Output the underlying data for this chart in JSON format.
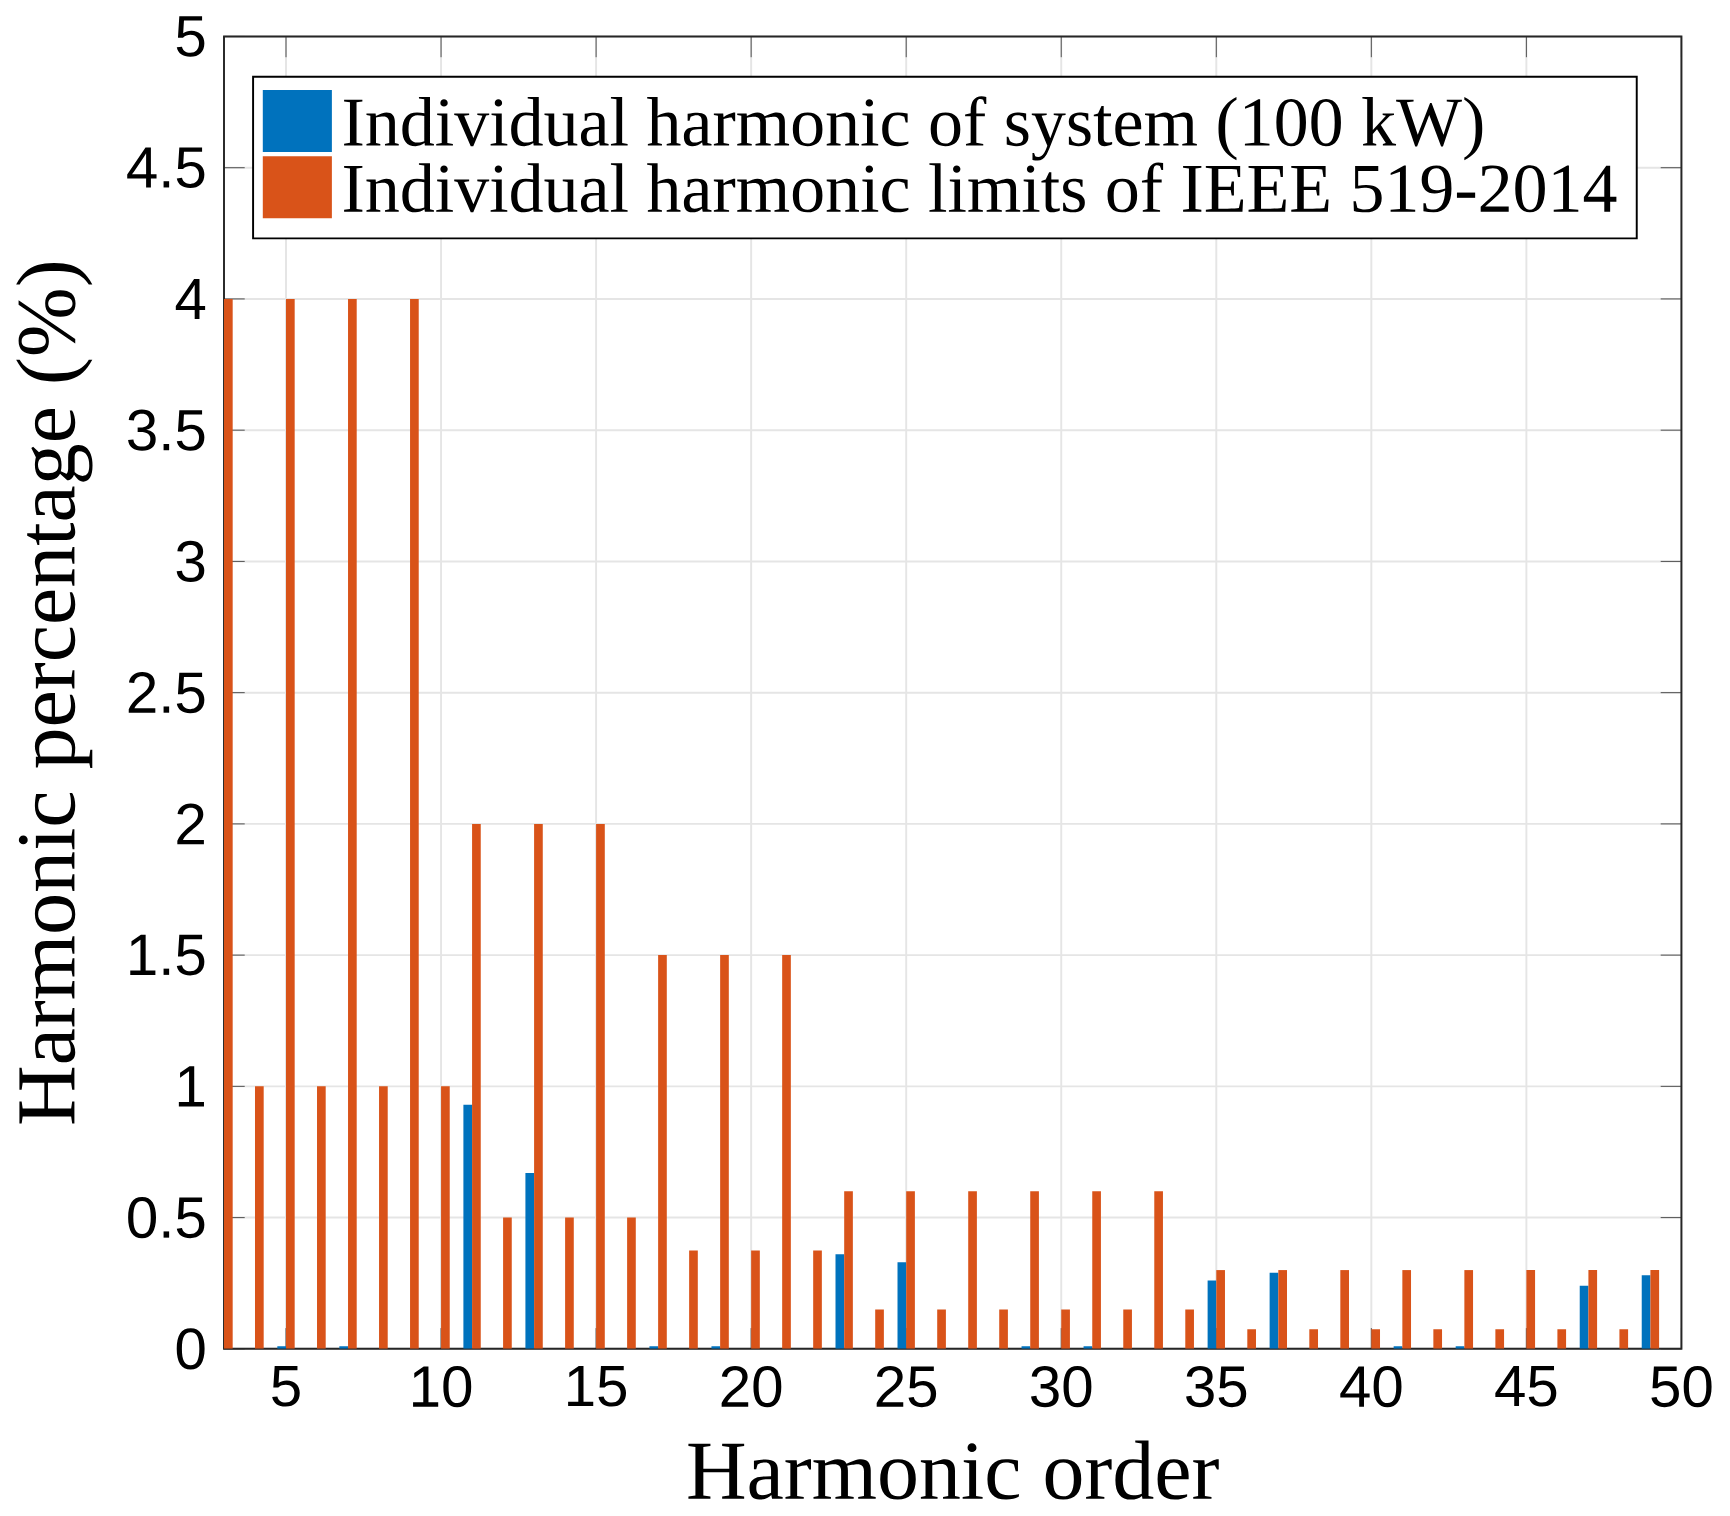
{
  "chart_data": {
    "type": "bar",
    "xlabel": "Harmonic order",
    "ylabel": "Harmonic percentage (%)",
    "x": [
      3,
      4,
      5,
      6,
      7,
      8,
      9,
      10,
      11,
      12,
      13,
      14,
      15,
      16,
      17,
      18,
      19,
      20,
      21,
      22,
      23,
      24,
      25,
      26,
      27,
      28,
      29,
      30,
      31,
      32,
      33,
      34,
      35,
      36,
      37,
      38,
      39,
      40,
      41,
      42,
      43,
      44,
      45,
      46,
      47,
      48,
      49
    ],
    "series": [
      {
        "name": "Individual harmonic of system (100 kW)",
        "color": "#0072bd",
        "values": [
          0,
          0,
          0.01,
          0,
          0.01,
          0,
          0,
          0,
          0.93,
          0,
          0.67,
          0,
          0,
          0,
          0.01,
          0,
          0.01,
          0,
          0,
          0,
          0.36,
          0,
          0.33,
          0,
          0,
          0,
          0.01,
          0,
          0.01,
          0,
          0,
          0,
          0.26,
          0,
          0.29,
          0,
          0,
          0,
          0.01,
          0,
          0.01,
          0,
          0,
          0,
          0.24,
          0,
          0.28
        ]
      },
      {
        "name": "Individual harmonic limits of IEEE 519-2014",
        "color": "#d95319",
        "values": [
          4,
          1,
          4,
          1,
          4,
          1,
          4,
          1,
          2,
          0.5,
          2,
          0.5,
          2,
          0.5,
          1.5,
          0.375,
          1.5,
          0.375,
          1.5,
          0.375,
          0.6,
          0.15,
          0.6,
          0.15,
          0.6,
          0.15,
          0.6,
          0.15,
          0.6,
          0.15,
          0.6,
          0.15,
          0.3,
          0.075,
          0.3,
          0.075,
          0.3,
          0.075,
          0.3,
          0.075,
          0.3,
          0.075,
          0.3,
          0.075,
          0.3,
          0.075,
          0.3
        ]
      }
    ],
    "xlim": [
      3,
      50
    ],
    "xticks": [
      5,
      10,
      15,
      20,
      25,
      30,
      35,
      40,
      45,
      50
    ],
    "ylim": [
      0,
      5
    ],
    "yticks": [
      0,
      0.5,
      1,
      1.5,
      2,
      2.5,
      3,
      3.5,
      4,
      4.5,
      5
    ],
    "grid": true,
    "legend": "top right"
  }
}
